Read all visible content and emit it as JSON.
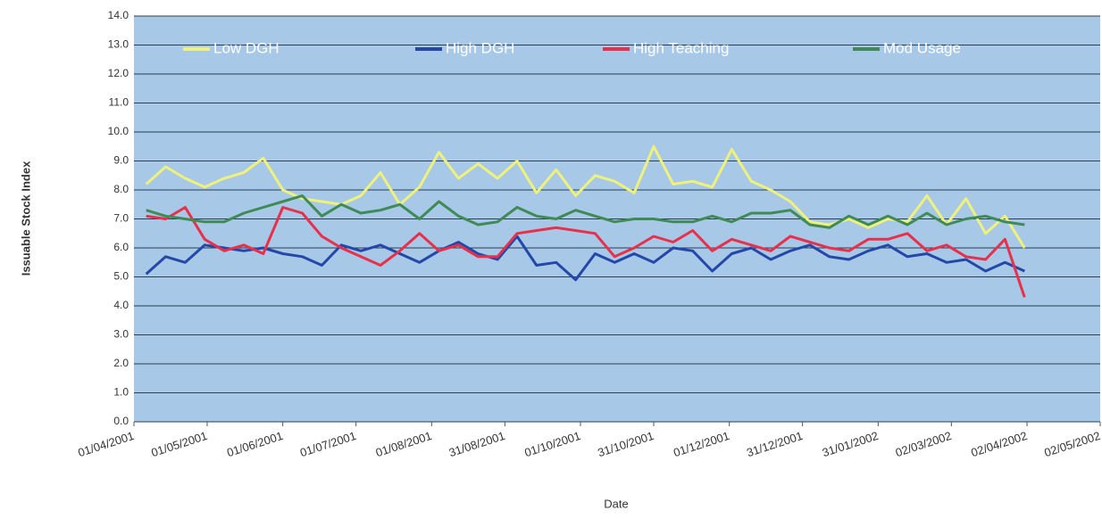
{
  "chart_data": {
    "type": "line",
    "y_label": "Issuable Stock Index",
    "x_label": "Date",
    "x": [
      "06/04/2001",
      "14/04/2001",
      "22/04/2001",
      "30/04/2001",
      "08/05/2001",
      "16/05/2001",
      "24/05/2001",
      "01/06/2001",
      "09/06/2001",
      "17/06/2001",
      "25/06/2001",
      "03/07/2001",
      "11/07/2001",
      "19/07/2001",
      "27/07/2001",
      "04/08/2001",
      "12/08/2001",
      "20/08/2001",
      "28/08/2001",
      "05/09/2001",
      "13/09/2001",
      "21/09/2001",
      "29/09/2001",
      "07/10/2001",
      "15/10/2001",
      "23/10/2001",
      "31/10/2001",
      "08/11/2001",
      "16/11/2001",
      "24/11/2001",
      "02/12/2001",
      "10/12/2001",
      "18/12/2001",
      "26/12/2001",
      "03/01/2002",
      "11/01/2002",
      "19/01/2002",
      "27/01/2002",
      "04/02/2002",
      "12/02/2002",
      "20/02/2002",
      "28/02/2002",
      "08/03/2002",
      "16/03/2002",
      "24/03/2002",
      "01/04/2002"
    ],
    "series": [
      {
        "name": "Low DGH",
        "color": "#eef27a",
        "values": [
          8.2,
          8.8,
          8.4,
          8.1,
          8.4,
          8.6,
          9.1,
          8.0,
          7.7,
          7.6,
          7.5,
          7.8,
          8.6,
          7.5,
          8.1,
          9.3,
          8.4,
          8.9,
          8.4,
          9.0,
          7.9,
          8.7,
          7.8,
          8.5,
          8.3,
          7.9,
          9.5,
          8.2,
          8.3,
          8.1,
          9.4,
          8.3,
          8.0,
          7.6,
          6.9,
          6.8,
          7.0,
          6.7,
          7.0,
          6.9,
          7.8,
          6.8,
          7.7,
          6.5,
          7.1,
          6.0
        ]
      },
      {
        "name": "High DGH",
        "color": "#2448a8",
        "values": [
          5.1,
          5.7,
          5.5,
          6.1,
          6.0,
          5.9,
          6.0,
          5.8,
          5.7,
          5.4,
          6.1,
          5.9,
          6.1,
          5.8,
          5.5,
          5.9,
          6.2,
          5.8,
          5.6,
          6.4,
          5.4,
          5.5,
          4.9,
          5.8,
          5.5,
          5.8,
          5.5,
          6.0,
          5.9,
          5.2,
          5.8,
          6.0,
          5.6,
          5.9,
          6.1,
          5.7,
          5.6,
          5.9,
          6.1,
          5.7,
          5.8,
          5.5,
          5.6,
          5.2,
          5.5,
          5.2
        ]
      },
      {
        "name": "High Teaching",
        "color": "#e8304a",
        "values": [
          7.1,
          7.0,
          7.4,
          6.3,
          5.9,
          6.1,
          5.8,
          7.4,
          7.2,
          6.4,
          6.0,
          5.7,
          5.4,
          5.9,
          6.5,
          5.9,
          6.1,
          5.7,
          5.7,
          6.5,
          6.6,
          6.7,
          6.6,
          6.5,
          5.7,
          6.0,
          6.4,
          6.2,
          6.6,
          5.9,
          6.3,
          6.1,
          5.9,
          6.4,
          6.2,
          6.0,
          5.9,
          6.3,
          6.3,
          6.5,
          5.9,
          6.1,
          5.7,
          5.6,
          6.3,
          4.3
        ]
      },
      {
        "name": "Mod Usage",
        "color": "#3f8a55",
        "values": [
          7.3,
          7.1,
          7.0,
          6.9,
          6.9,
          7.2,
          7.4,
          7.6,
          7.8,
          7.1,
          7.5,
          7.2,
          7.3,
          7.5,
          7.0,
          7.6,
          7.1,
          6.8,
          6.9,
          7.4,
          7.1,
          7.0,
          7.3,
          7.1,
          6.9,
          7.0,
          7.0,
          6.9,
          6.9,
          7.1,
          6.9,
          7.2,
          7.2,
          7.3,
          6.8,
          6.7,
          7.1,
          6.8,
          7.1,
          6.8,
          7.2,
          6.8,
          7.0,
          7.1,
          6.9,
          6.8
        ]
      }
    ],
    "xlim": [
      "01/04/2001",
      "02/05/2002"
    ],
    "xticks": [
      "01/04/2001",
      "01/05/2001",
      "01/06/2001",
      "01/07/2001",
      "01/08/2001",
      "31/08/2001",
      "01/10/2001",
      "31/10/2001",
      "01/12/2001",
      "31/12/2001",
      "31/01/2002",
      "02/03/2002",
      "02/04/2002",
      "02/05/2002"
    ],
    "ylim": [
      0,
      14
    ],
    "yticks": [
      {
        "value": 0,
        "label": "0.0"
      },
      {
        "value": 1,
        "label": "1.0"
      },
      {
        "value": 2,
        "label": "2.0"
      },
      {
        "value": 3,
        "label": "3.0"
      },
      {
        "value": 4,
        "label": "4.0"
      },
      {
        "value": 5,
        "label": "5.0"
      },
      {
        "value": 6,
        "label": "6.0"
      },
      {
        "value": 7,
        "label": "7.0"
      },
      {
        "value": 8,
        "label": "8.0"
      },
      {
        "value": 9,
        "label": "9.0"
      },
      {
        "value": 10,
        "label": "10.0"
      },
      {
        "value": 11,
        "label": "11.0"
      },
      {
        "value": 12,
        "label": "12.0"
      },
      {
        "value": 13,
        "label": "13.0"
      },
      {
        "value": 14,
        "label": "14.0"
      }
    ],
    "grid": true,
    "legend": "top"
  }
}
